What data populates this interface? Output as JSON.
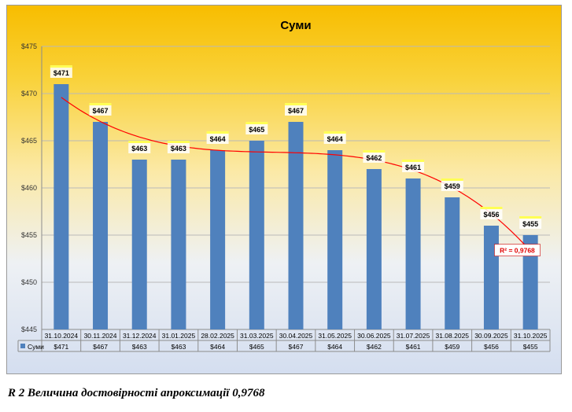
{
  "chart_data": {
    "type": "bar",
    "title": "Суми",
    "categories": [
      "31.10.2024",
      "30.11.2024",
      "31.12.2024",
      "31.01.2025",
      "28.02.2025",
      "31.03.2025",
      "30.04.2025",
      "31.05.2025",
      "30.06.2025",
      "31.07.2025",
      "31.08.2025",
      "30.09.2025",
      "31.10.2025"
    ],
    "series": [
      {
        "name": "Суми",
        "values": [
          471,
          467,
          463,
          463,
          464,
          465,
          467,
          464,
          462,
          461,
          459,
          456,
          455
        ],
        "color": "#4f81bd"
      }
    ],
    "data_labels": [
      "$471",
      "$467",
      "$463",
      "$463",
      "$464",
      "$465",
      "$467",
      "$464",
      "$462",
      "$461",
      "$459",
      "$456",
      "$455"
    ],
    "yticks": [
      445,
      450,
      455,
      460,
      465,
      470,
      475
    ],
    "ytick_labels": [
      "$445",
      "$450",
      "$455",
      "$460",
      "$465",
      "$470",
      "$475"
    ],
    "ylim": [
      445,
      475
    ],
    "grid": true,
    "legend": "data-table-bottom",
    "trendline": {
      "type": "polynomial",
      "color": "#ff0000",
      "r2_label": "R² = 0,9768"
    },
    "xlabel": "",
    "ylabel": ""
  },
  "caption": "R 2 Величина достовірності апроксимації 0,9768"
}
